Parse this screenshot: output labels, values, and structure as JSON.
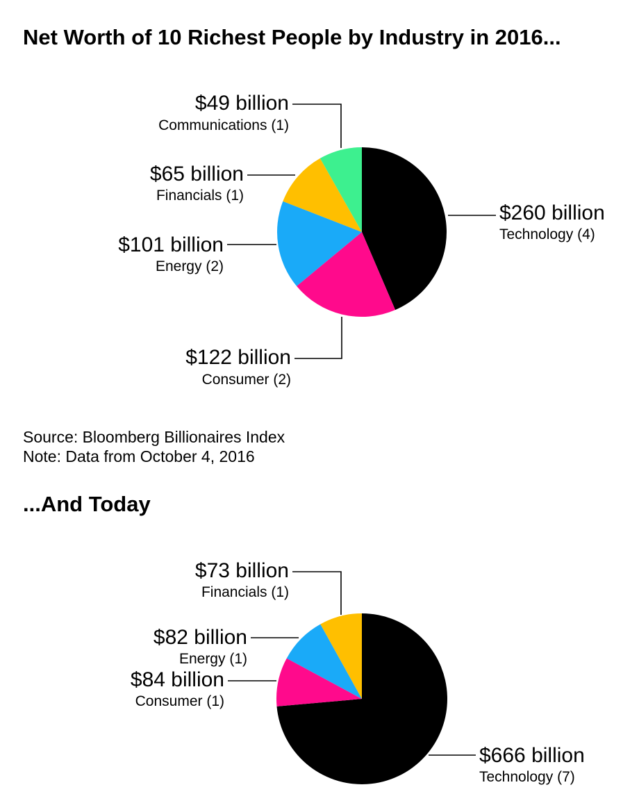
{
  "chart_data": [
    {
      "type": "pie",
      "title": "Net Worth of 10 Richest People by Industry in 2016...",
      "slices": [
        {
          "value": 260,
          "label": "$260 billion",
          "category": "Technology (4)",
          "color": "#000000"
        },
        {
          "value": 122,
          "label": "$122 billion",
          "category": "Consumer (2)",
          "color": "#ff0a8c"
        },
        {
          "value": 101,
          "label": "$101 billion",
          "category": "Energy (2)",
          "color": "#1aaaf8"
        },
        {
          "value": 65,
          "label": "$65 billion",
          "category": "Financials (1)",
          "color": "#ffbf00"
        },
        {
          "value": 49,
          "label": "$49 billion",
          "category": "Communications (1)",
          "color": "#3df08f"
        }
      ],
      "source": "Source: Bloomberg Billionaires Index",
      "note": "Note: Data from October 4, 2016"
    },
    {
      "type": "pie",
      "title": "...And Today",
      "slices": [
        {
          "value": 666,
          "label": "$666 billion",
          "category": "Technology (7)",
          "color": "#000000"
        },
        {
          "value": 84,
          "label": "$84 billion",
          "category": "Consumer (1)",
          "color": "#ff0a8c"
        },
        {
          "value": 82,
          "label": "$82 billion",
          "category": "Energy (1)",
          "color": "#1aaaf8"
        },
        {
          "value": 73,
          "label": "$73 billion",
          "category": "Financials (1)",
          "color": "#ffbf00"
        }
      ]
    }
  ]
}
